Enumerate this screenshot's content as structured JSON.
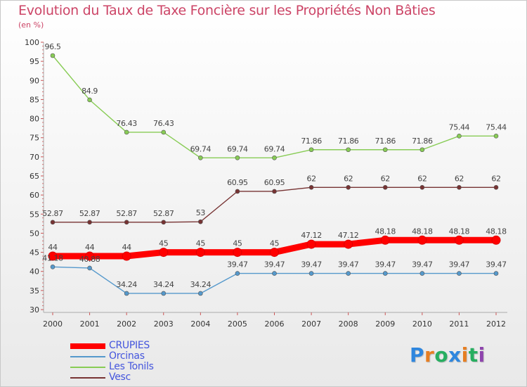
{
  "title": "Evolution du Taux de Taxe Foncière sur les Propriétés Non Bâties",
  "subtitle": "(en %)",
  "logo": {
    "text": "Proxiti",
    "letters": [
      {
        "char": "P",
        "color": "#2e86de"
      },
      {
        "char": "r",
        "color": "#e67e22"
      },
      {
        "char": "o",
        "color": "#27ae60"
      },
      {
        "char": "x",
        "color": "#2e86de"
      },
      {
        "char": "i",
        "color": "#e67e22"
      },
      {
        "char": "t",
        "color": "#27ae60"
      },
      {
        "char": "i",
        "color": "#8e44ad"
      }
    ]
  },
  "chart_data": {
    "type": "line",
    "x": [
      "2000",
      "2001",
      "2002",
      "2003",
      "2004",
      "2005",
      "2006",
      "2007",
      "2008",
      "2009",
      "2010",
      "2011",
      "2012"
    ],
    "ylim": [
      30,
      100
    ],
    "yticks": [
      30,
      35,
      40,
      45,
      50,
      55,
      60,
      65,
      70,
      75,
      80,
      85,
      90,
      95,
      100
    ],
    "grid": false,
    "legend_placement": "bottom-left",
    "series": [
      {
        "name": "CRUPIES",
        "color": "#ff0000",
        "width": "thick",
        "values": [
          44,
          44,
          44,
          45,
          45,
          45,
          45,
          47.12,
          47.12,
          48.18,
          48.18,
          48.18,
          48.18
        ],
        "labels": [
          "44",
          "44",
          "44",
          "45",
          "45",
          "45",
          "45",
          "47.12",
          "47.12",
          "48.18",
          "48.18",
          "48.18",
          "48.18"
        ]
      },
      {
        "name": "Orcinas",
        "color": "#5599cc",
        "width": "thin",
        "values": [
          41.18,
          40.88,
          34.24,
          34.24,
          34.24,
          39.47,
          39.47,
          39.47,
          39.47,
          39.47,
          39.47,
          39.47,
          39.47
        ],
        "labels": [
          "41.18",
          "40.88",
          "34.24",
          "34.24",
          "34.24",
          "39.47",
          "39.47",
          "39.47",
          "39.47",
          "39.47",
          "39.47",
          "39.47",
          "39.47"
        ]
      },
      {
        "name": "Les Tonils",
        "color": "#88cc55",
        "width": "thin",
        "values": [
          96.5,
          84.9,
          76.43,
          76.43,
          69.74,
          69.74,
          69.74,
          71.86,
          71.86,
          71.86,
          71.86,
          75.44,
          75.44
        ],
        "labels": [
          "96.5",
          "84.9",
          "76.43",
          "76.43",
          "69.74",
          "69.74",
          "69.74",
          "71.86",
          "71.86",
          "71.86",
          "71.86",
          "75.44",
          "75.44"
        ]
      },
      {
        "name": "Vesc",
        "color": "#773333",
        "width": "thin",
        "values": [
          52.87,
          52.87,
          52.87,
          52.87,
          53,
          60.95,
          60.95,
          62,
          62,
          62,
          62,
          62,
          62
        ],
        "labels": [
          "52.87",
          "52.87",
          "52.87",
          "52.87",
          "53",
          "60.95",
          "60.95",
          "62",
          "62",
          "62",
          "62",
          "62",
          "62"
        ]
      }
    ]
  }
}
